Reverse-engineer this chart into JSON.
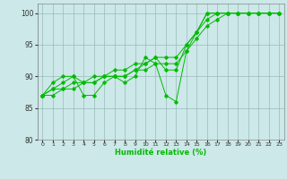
{
  "line_jagged": [
    87,
    89,
    90,
    90,
    87,
    87,
    89,
    90,
    89,
    90,
    93,
    92,
    87,
    86,
    94,
    97,
    100,
    100,
    100,
    100,
    100,
    100,
    100,
    100
  ],
  "line_mid1": [
    87,
    88,
    89,
    90,
    89,
    89,
    90,
    90,
    90,
    91,
    92,
    93,
    91,
    91,
    95,
    97,
    100,
    100,
    100,
    100,
    100,
    100,
    100,
    100
  ],
  "line_trend1": [
    87,
    88,
    88,
    89,
    89,
    90,
    90,
    91,
    91,
    92,
    92,
    93,
    93,
    93,
    95,
    97,
    99,
    100,
    100,
    100,
    100,
    100,
    100,
    100
  ],
  "line_trend2": [
    87,
    87,
    88,
    88,
    89,
    89,
    90,
    90,
    90,
    91,
    91,
    92,
    92,
    92,
    94,
    96,
    98,
    99,
    100,
    100,
    100,
    100,
    100,
    100
  ],
  "line_color": "#00bb00",
  "bg_color": "#cce8e8",
  "grid_color": "#99bbbb",
  "xlabel": "Humidité relative (%)",
  "ylim": [
    80,
    101.5
  ],
  "xlim": [
    -0.5,
    23.5
  ],
  "yticks": [
    80,
    85,
    90,
    95,
    100
  ],
  "xticks": [
    0,
    1,
    2,
    3,
    4,
    5,
    6,
    7,
    8,
    9,
    10,
    11,
    12,
    13,
    14,
    15,
    16,
    17,
    18,
    19,
    20,
    21,
    22,
    23
  ]
}
